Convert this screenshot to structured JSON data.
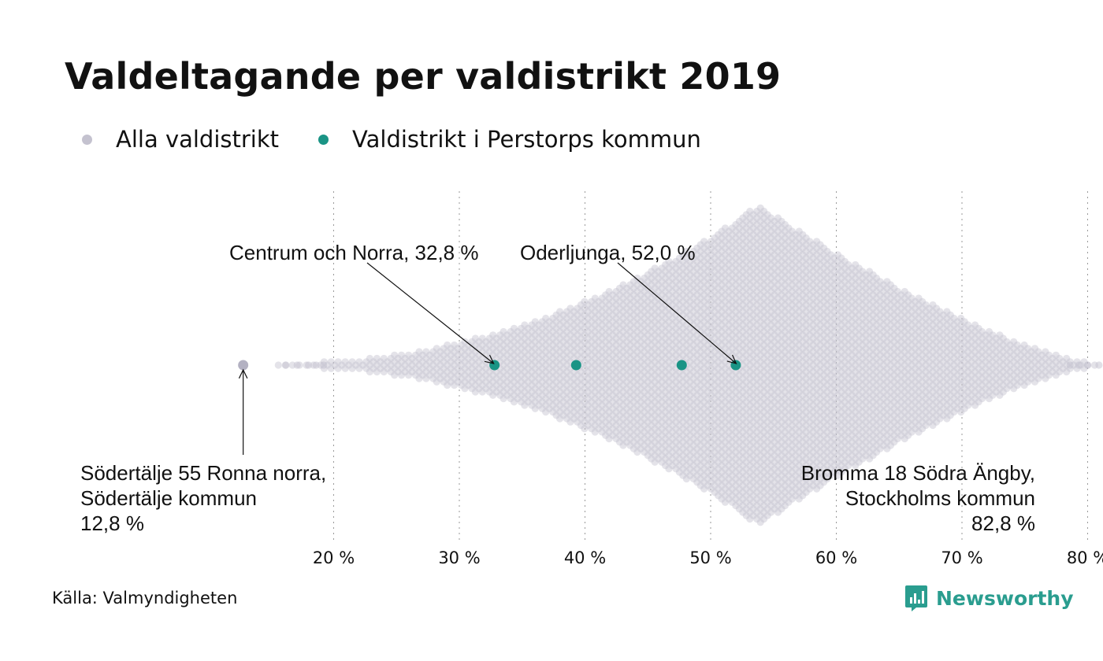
{
  "title": "Valdeltagande per valdistrikt 2019",
  "legend": [
    {
      "label": "Alla valdistrikt",
      "color": "#c4c2cf"
    },
    {
      "label": "Valdistrikt i Perstorps kommun",
      "color": "#1a9485"
    }
  ],
  "source": "Källa: Valmyndigheten",
  "logo": {
    "text": "Newsworthy",
    "icon": "bar-chart-icon",
    "color": "#2a9d8f"
  },
  "chart_data": {
    "type": "scatter",
    "subtype": "beeswarm",
    "x_axis": {
      "ticks": [
        20,
        30,
        40,
        50,
        60,
        70,
        80
      ],
      "tick_labels": [
        "20 %",
        "30 %",
        "40 %",
        "50 %",
        "60 %",
        "70 %",
        "80 %"
      ],
      "range": [
        12,
        83.5
      ],
      "grid": "dotted vertical"
    },
    "distribution": {
      "series": "Alla valdistrikt",
      "min": 12.8,
      "max": 82.8,
      "mode": 53.8,
      "color": "#c4c2cf"
    },
    "highlighted": {
      "series": "Valdistrikt i Perstorps kommun",
      "color": "#1a9485",
      "values": [
        32.8,
        39.3,
        47.7,
        52.0
      ]
    },
    "extremes": [
      {
        "value": 12.8,
        "lines": [
          "Södertälje 55 Ronna norra,",
          "Södertälje kommun",
          "12,8 %"
        ],
        "align": "left"
      },
      {
        "value": 82.8,
        "lines": [
          "Bromma 18 Södra Ängby,",
          "Stockholms kommun",
          "82,8 %"
        ],
        "align": "right"
      }
    ],
    "annotations": [
      {
        "value": 32.8,
        "text": "Centrum och Norra, 32,8 %"
      },
      {
        "value": 52.0,
        "text": "Oderljunga, 52,0 %"
      }
    ]
  }
}
